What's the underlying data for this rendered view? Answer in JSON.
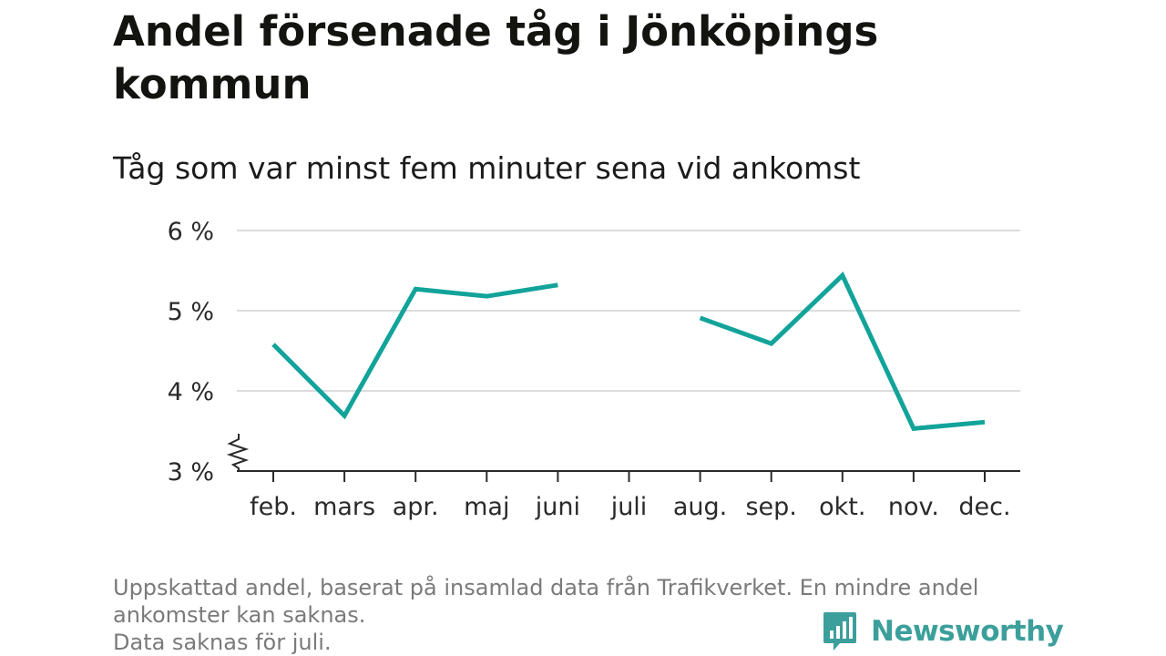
{
  "title": "Andel försenade tåg i Jönköpings kommun",
  "subtitle": "Tåg som var minst fem minuter sena vid ankomst",
  "footnote": {
    "line1": "Uppskattad andel, baserat på insamlad data från Trafikverket. En mindre andel",
    "line2": "ankomster kan saknas.",
    "line3": "Data saknas för juli."
  },
  "logo": {
    "text": "Newsworthy",
    "icon": "newsworthy-logo-icon"
  },
  "colors": {
    "line": "#12a39a",
    "grid": "#dcdcdc",
    "axis": "#2a2a2a",
    "brand": "#3c9f9b"
  },
  "chart_data": {
    "type": "line",
    "categories": [
      "feb.",
      "mars",
      "apr.",
      "maj",
      "juni",
      "juli",
      "aug.",
      "sep.",
      "okt.",
      "nov.",
      "dec."
    ],
    "values": [
      4.58,
      3.69,
      5.27,
      5.18,
      5.32,
      null,
      4.91,
      4.59,
      5.44,
      3.53,
      3.61
    ],
    "y_ticks": [
      3,
      4,
      5,
      6
    ],
    "y_tick_labels": [
      "3 %",
      "4 %",
      "5 %",
      "6 %"
    ],
    "ylim": [
      3,
      6
    ],
    "y_axis_break": true,
    "grid": true,
    "missing": [
      "juli"
    ]
  }
}
